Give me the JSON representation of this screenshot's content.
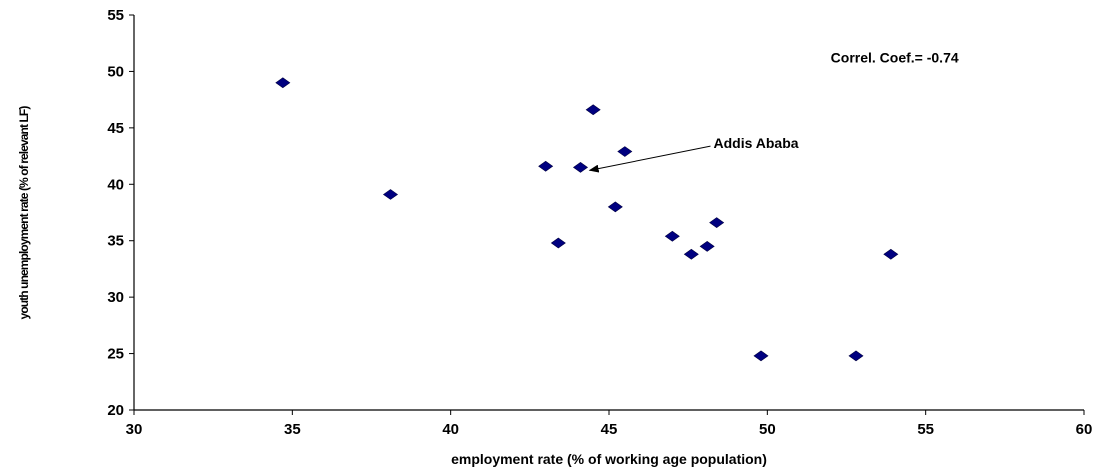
{
  "chart_data": {
    "type": "scatter",
    "title": "",
    "xlabel": "employment rate (% of working age population)",
    "ylabel": "youth unemployment rate (% of relevant LF)",
    "xlim": [
      30,
      60
    ],
    "ylim": [
      20,
      55
    ],
    "x_ticks": [
      30,
      35,
      40,
      45,
      50,
      55,
      60
    ],
    "y_ticks": [
      20,
      25,
      30,
      35,
      40,
      45,
      50,
      55
    ],
    "grid": false,
    "legend": "none",
    "marker": "diamond",
    "marker_color": "#000080",
    "points": [
      {
        "x": 34.7,
        "y": 49.0
      },
      {
        "x": 38.1,
        "y": 39.1
      },
      {
        "x": 43.0,
        "y": 41.6
      },
      {
        "x": 43.4,
        "y": 34.8
      },
      {
        "x": 44.1,
        "y": 41.5
      },
      {
        "x": 44.5,
        "y": 46.6
      },
      {
        "x": 45.2,
        "y": 38.0
      },
      {
        "x": 45.5,
        "y": 42.9
      },
      {
        "x": 47.0,
        "y": 35.4
      },
      {
        "x": 47.6,
        "y": 33.8
      },
      {
        "x": 48.1,
        "y": 34.5
      },
      {
        "x": 48.4,
        "y": 36.6
      },
      {
        "x": 49.8,
        "y": 24.8
      },
      {
        "x": 52.8,
        "y": 24.8
      },
      {
        "x": 53.9,
        "y": 33.8
      }
    ],
    "annotations": [
      {
        "text": "Correl. Coef.=  -0.74",
        "x": 52.0,
        "y": 50.8
      },
      {
        "text": "Addis Ababa",
        "x": 48.3,
        "y": 43.2,
        "arrow_to": {
          "x": 44.2,
          "y": 41.5
        }
      }
    ]
  }
}
